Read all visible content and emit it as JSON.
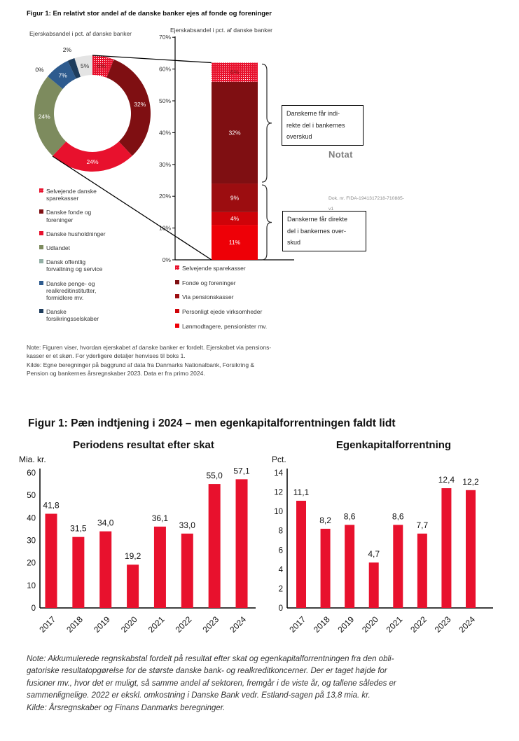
{
  "figure_top": {
    "title": "Figur 1: En relativt stor andel af de danske banker ejes af fonde og foreninger",
    "notat_label": "Notat",
    "doc_number_lines": [
      "Dok. nr. FIDA-1941317218-710885-",
      "v1"
    ],
    "callout_indirect_lines": [
      "Danskerne får indi-",
      "rekte del i bankernes",
      "overskud"
    ],
    "callout_direct_lines": [
      "Danskerne får direkte",
      "del i bankernes over-",
      "skud"
    ],
    "note_lines": [
      "Note: Figuren viser, hvordan ejerskabet af danske banker er fordelt. Ejerskabet via pensions-",
      "kasser er et skøn. For yderligere detaljer henvises til boks 1.",
      "Kilde: Egne beregninger på baggrund af data fra Danmarks Nationalbank, Forsikring &",
      "Pension og bankernes årsregnskaber 2023. Data er fra primo 2024."
    ]
  },
  "figure_bottom": {
    "title": "Figur 1: Pæn indtjening i 2024 – men egenkapitalforrentningen faldt lidt",
    "note_lines": [
      "Note: Akkumulerede regnskabstal fordelt på resultat efter skat og egenkapitalforrentningen fra den obli-",
      "gatoriske resultatopgørelse for de største danske bank- og realkreditkoncerner. Der er taget højde for",
      "fusioner mv., hvor det er muligt, så samme andel af sektoren, fremgår i de viste år, og tallene således er",
      "sammenlignelige.  2022 er ekskl. omkostning i Danske Bank vedr. Estland-sagen på 13,8 mia. kr.",
      "Kilde: Årsregnskaber og Finans Danmarks beregninger."
    ]
  },
  "colors": {
    "accent_red": "#e8112d",
    "maroon": "#7f0f12",
    "dark_red": "#9c0d10",
    "mid_red": "#cf0309",
    "bright_red": "#ee0007",
    "olive": "#7d8b5e",
    "steel_blue": "#2e5b8e",
    "navy": "#1e3c5c",
    "sage": "#93afa5",
    "light_gray": "#e4e4e4"
  },
  "chart_data": [
    {
      "id": "ownership_donut",
      "type": "pie",
      "title": "Ejerskabsandel i pct. af danske banker",
      "slices": [
        {
          "label": "6%",
          "value": 6,
          "color": "checker",
          "text": "#7f0f12"
        },
        {
          "label": "32%",
          "value": 32,
          "color": "#7f0f12",
          "text": "#ffffff"
        },
        {
          "label": "24%",
          "value": 24,
          "color": "#e8112d",
          "text": "#ffffff"
        },
        {
          "label": "24%",
          "value": 24,
          "color": "#7d8b5e",
          "text": "#ffffff"
        },
        {
          "label": "0%",
          "value": 0,
          "color": "#93afa5",
          "outside": true
        },
        {
          "label": "7%",
          "value": 7,
          "color": "#2e5b8e",
          "text": "#ffffff"
        },
        {
          "label": "2%",
          "value": 2,
          "color": "#1e3c5c",
          "outside": true
        },
        {
          "label": "5%",
          "value": 5,
          "color": "#e4e4e4",
          "text": "#3a3a3a"
        }
      ],
      "legend": [
        {
          "label": "Selvejende danske sparekasser",
          "color": "checker"
        },
        {
          "label": "Danske fonde og foreninger",
          "color": "#7f0f12"
        },
        {
          "label": "Danske husholdninger",
          "color": "#e8112d"
        },
        {
          "label": "Udlandet",
          "color": "#7d8b5e"
        },
        {
          "label": "Dansk offentlig forvaltning og service",
          "color": "#93afa5"
        },
        {
          "label": "Danske penge- og realkreditinstitutter, formidlere mv.",
          "color": "#2e5b8e"
        },
        {
          "label": "Danske forsikringsselskaber",
          "color": "#1e3c5c"
        }
      ]
    },
    {
      "id": "ownership_stacked_bar",
      "type": "bar",
      "title": "Ejerskabsandel i pct. af danske banker",
      "ymax": 70,
      "ytick_step": 10,
      "ytick_labels": [
        "0%",
        "10%",
        "20%",
        "30%",
        "40%",
        "50%",
        "60%",
        "70%"
      ],
      "segments_bottom_to_top": [
        {
          "label": "11%",
          "value": 11,
          "color": "#ee0007",
          "text": "#ffffff"
        },
        {
          "label": "4%",
          "value": 4,
          "color": "#cf0309",
          "text": "#ffffff"
        },
        {
          "label": "9%",
          "value": 9,
          "color": "#9c0d10",
          "text": "#ffffff"
        },
        {
          "label": "32%",
          "value": 32,
          "color": "#7f0f12",
          "text": "#ffffff"
        },
        {
          "label": "6%",
          "value": 6,
          "color": "checker",
          "text": "#7f0f12"
        }
      ],
      "legend": [
        {
          "label": "Selvejende sparekasser",
          "color": "checker"
        },
        {
          "label": "Fonde og foreninger",
          "color": "#7f0f12"
        },
        {
          "label": "Via pensionskasser",
          "color": "#9c0d10"
        },
        {
          "label": "Personligt ejede virksomheder",
          "color": "#cf0309"
        },
        {
          "label": "Lønmodtagere, pensionister mv.",
          "color": "#ee0007"
        }
      ]
    },
    {
      "id": "resultat_efter_skat",
      "type": "bar",
      "title": "Periodens resultat efter skat",
      "unit": "Mia. kr.",
      "categories": [
        "2017",
        "2018",
        "2019",
        "2020",
        "2021",
        "2022",
        "2023",
        "2024"
      ],
      "values": [
        41.8,
        31.5,
        34.0,
        19.2,
        36.1,
        33.0,
        55.0,
        57.1
      ],
      "value_labels": [
        "41,8",
        "31,5",
        "34,0",
        "19,2",
        "36,1",
        "33,0",
        "55,0",
        "57,1"
      ],
      "ymax": 60,
      "ytick_step": 10,
      "ytick_labels": [
        "0",
        "10",
        "20",
        "30",
        "40",
        "50",
        "60"
      ],
      "bar_color": "#e8112d"
    },
    {
      "id": "egenkapitalforrentning",
      "type": "bar",
      "title": "Egenkapitalforrentning",
      "unit": "Pct.",
      "categories": [
        "2017",
        "2018",
        "2019",
        "2020",
        "2021",
        "2022",
        "2023",
        "2024"
      ],
      "values": [
        11.1,
        8.2,
        8.6,
        4.7,
        8.6,
        7.7,
        12.4,
        12.2
      ],
      "value_labels": [
        "11,1",
        "8,2",
        "8,6",
        "4,7",
        "8,6",
        "7,7",
        "12,4",
        "12,2"
      ],
      "ymax": 14,
      "ytick_step": 2,
      "ytick_labels": [
        "0",
        "2",
        "4",
        "6",
        "8",
        "10",
        "12",
        "14"
      ],
      "bar_color": "#e8112d"
    }
  ]
}
